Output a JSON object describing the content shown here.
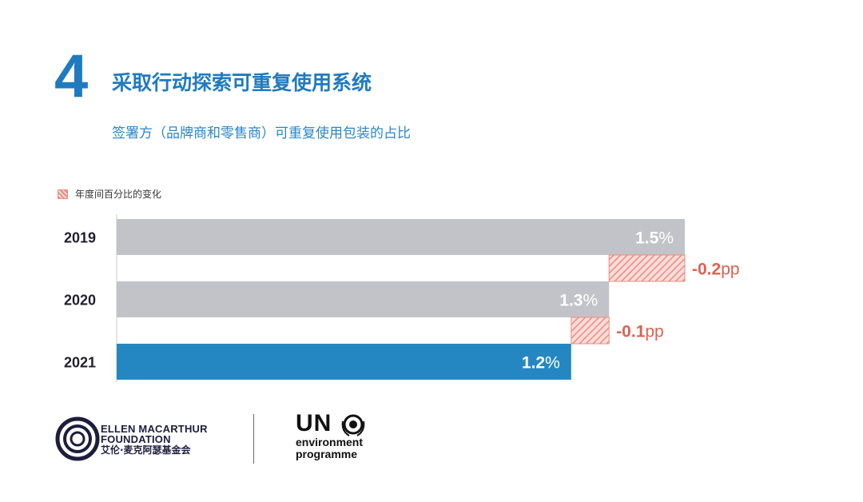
{
  "header": {
    "number": "4",
    "title": "采取行动探索可重复使用系统",
    "subtitle": "签署方（品牌商和零售商）可重复使用包装的占比"
  },
  "legend": {
    "label": "年度间百分比的变化"
  },
  "chart_data": {
    "type": "bar",
    "orientation": "horizontal",
    "categories": [
      "2019",
      "2020",
      "2021"
    ],
    "values": [
      1.5,
      1.3,
      1.2
    ],
    "value_labels": [
      "1.5",
      "1.3",
      "1.2"
    ],
    "unit": "%",
    "changes": [
      {
        "between": [
          "2019",
          "2020"
        ],
        "value": -0.2,
        "label": "-0.2",
        "unit": "pp"
      },
      {
        "between": [
          "2020",
          "2021"
        ],
        "value": -0.1,
        "label": "-0.1",
        "unit": "pp"
      }
    ],
    "xlim": [
      0,
      1.5
    ],
    "legend": [
      "年度间百分比的变化"
    ],
    "colors": {
      "bar": "#c2c3c8",
      "highlight": "#2587c2",
      "change": "#ef8a7f",
      "change_text": "#e0604f",
      "label": "#ffffff"
    }
  },
  "footer": {
    "emf": {
      "line1": "ELLEN MACARTHUR",
      "line2": "FOUNDATION",
      "chinese": "艾伦·麦克阿瑟基金会"
    },
    "un": {
      "line1": "UN",
      "line2": "environment",
      "line3": "programme"
    }
  }
}
